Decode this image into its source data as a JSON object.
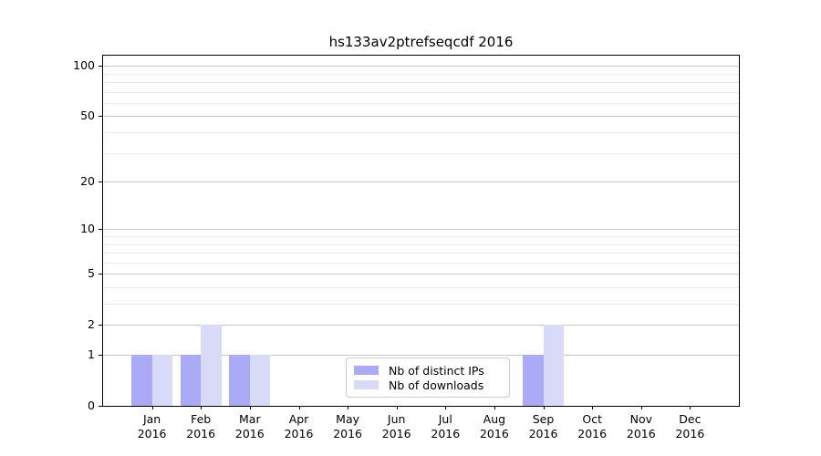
{
  "title": "hs133av2ptrefseqcdf 2016",
  "colors": {
    "series_ips": "#aaaaf6",
    "series_downloads": "#d9d9f8",
    "grid_major": "#c6c6c6",
    "grid_minor": "#ebebeb",
    "spine": "#000000",
    "background": "#ffffff",
    "legend_border": "#cccccc"
  },
  "legend": {
    "items": [
      {
        "label": "Nb of distinct IPs",
        "color": "#aaaaf6"
      },
      {
        "label": "Nb of downloads",
        "color": "#d9d9f8"
      }
    ]
  },
  "chart_data": {
    "type": "bar",
    "title": "hs133av2ptrefseqcdf 2016",
    "categories": [
      "Jan 2016",
      "Feb 2016",
      "Mar 2016",
      "Apr 2016",
      "May 2016",
      "Jun 2016",
      "Jul 2016",
      "Aug 2016",
      "Sep 2016",
      "Oct 2016",
      "Nov 2016",
      "Dec 2016"
    ],
    "series": [
      {
        "name": "Nb of distinct IPs",
        "color": "#aaaaf6",
        "values": [
          1,
          1,
          1,
          0,
          0,
          0,
          0,
          0,
          1,
          0,
          0,
          0
        ]
      },
      {
        "name": "Nb of downloads",
        "color": "#d9d9f8",
        "values": [
          1,
          2,
          1,
          0,
          0,
          0,
          0,
          0,
          2,
          0,
          0,
          0
        ]
      }
    ],
    "xlabel": "",
    "ylabel": "",
    "yscale": "log1p",
    "ylim": [
      0,
      115
    ],
    "y_major_ticks": [
      0,
      1,
      2,
      5,
      10,
      20,
      50,
      100
    ],
    "y_minor_ticks": [
      3,
      4,
      6,
      7,
      8,
      9,
      30,
      40,
      60,
      70,
      80,
      90
    ],
    "grid": true,
    "legend_position": "lower center"
  }
}
